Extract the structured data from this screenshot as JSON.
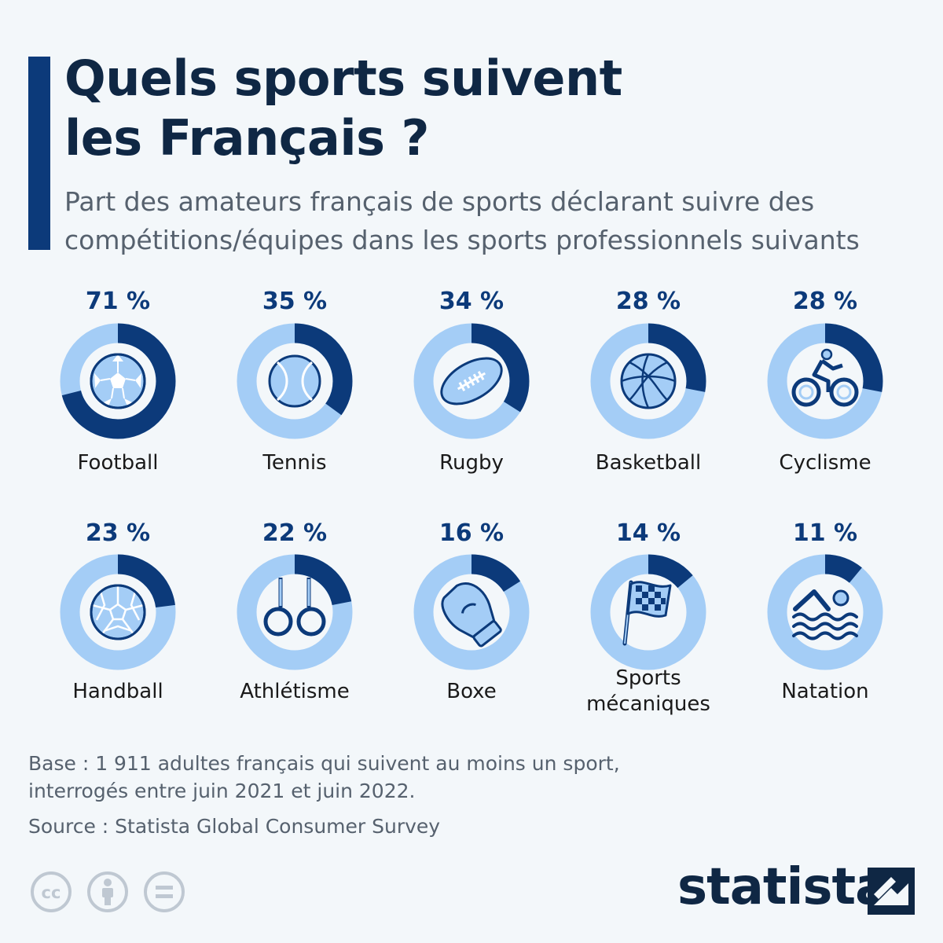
{
  "header": {
    "title_lines": [
      "Quels sports suivent",
      "les Français ?"
    ],
    "subtitle_lines": [
      "Part des amateurs français de sports déclarant suivre des",
      "compétitions/équipes dans les sports professionnels suivants"
    ]
  },
  "chart_data": {
    "type": "donut",
    "categories": [
      "Football",
      "Tennis",
      "Rugby",
      "Basketball",
      "Cyclisme",
      "Handball",
      "Athlétisme",
      "Boxe",
      "Sports mécaniques",
      "Natation"
    ],
    "values": [
      71,
      35,
      34,
      28,
      28,
      23,
      22,
      16,
      14,
      11
    ],
    "value_labels": [
      "71 %",
      "35 %",
      "34 %",
      "28 %",
      "28 %",
      "23 %",
      "22 %",
      "16 %",
      "14 %",
      "11 %"
    ],
    "label_lines": [
      [
        "Football"
      ],
      [
        "Tennis"
      ],
      [
        "Rugby"
      ],
      [
        "Basketball"
      ],
      [
        "Cyclisme"
      ],
      [
        "Handball"
      ],
      [
        "Athlétisme"
      ],
      [
        "Boxe"
      ],
      [
        "Sports",
        "mécaniques"
      ],
      [
        "Natation"
      ]
    ],
    "icons": [
      "soccer-ball-icon",
      "tennis-ball-icon",
      "rugby-ball-icon",
      "basketball-icon",
      "cyclist-icon",
      "handball-icon",
      "gymnastic-rings-icon",
      "boxing-glove-icon",
      "checkered-flag-icon",
      "swimmer-icon"
    ],
    "colors": {
      "filled": "#0c3a7a",
      "track": "#a4cdf6",
      "icon_fill": "#a4cdf6",
      "icon_stroke": "#0c3a7a"
    }
  },
  "footer": {
    "base_lines": [
      "Base : 1 911 adultes français qui suivent au moins un sport,",
      "interrogés entre juin 2021 et juin 2022."
    ],
    "source": "Source : Statista Global Consumer Survey",
    "brand": "statista",
    "license_icons": [
      "creative-commons-icon",
      "attribution-icon",
      "no-derivatives-icon"
    ]
  }
}
